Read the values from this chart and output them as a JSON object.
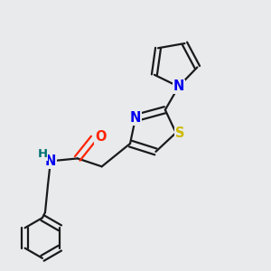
{
  "bg_color": "#e8eaec",
  "bond_color": "#1a1a1a",
  "N_color": "#0000ee",
  "S_color": "#ccbb00",
  "O_color": "#ff2200",
  "H_color": "#007070",
  "line_width": 1.6,
  "font_size": 10.5,
  "font_size_H": 9.5,
  "xlim": [
    0,
    1
  ],
  "ylim": [
    0,
    1
  ]
}
